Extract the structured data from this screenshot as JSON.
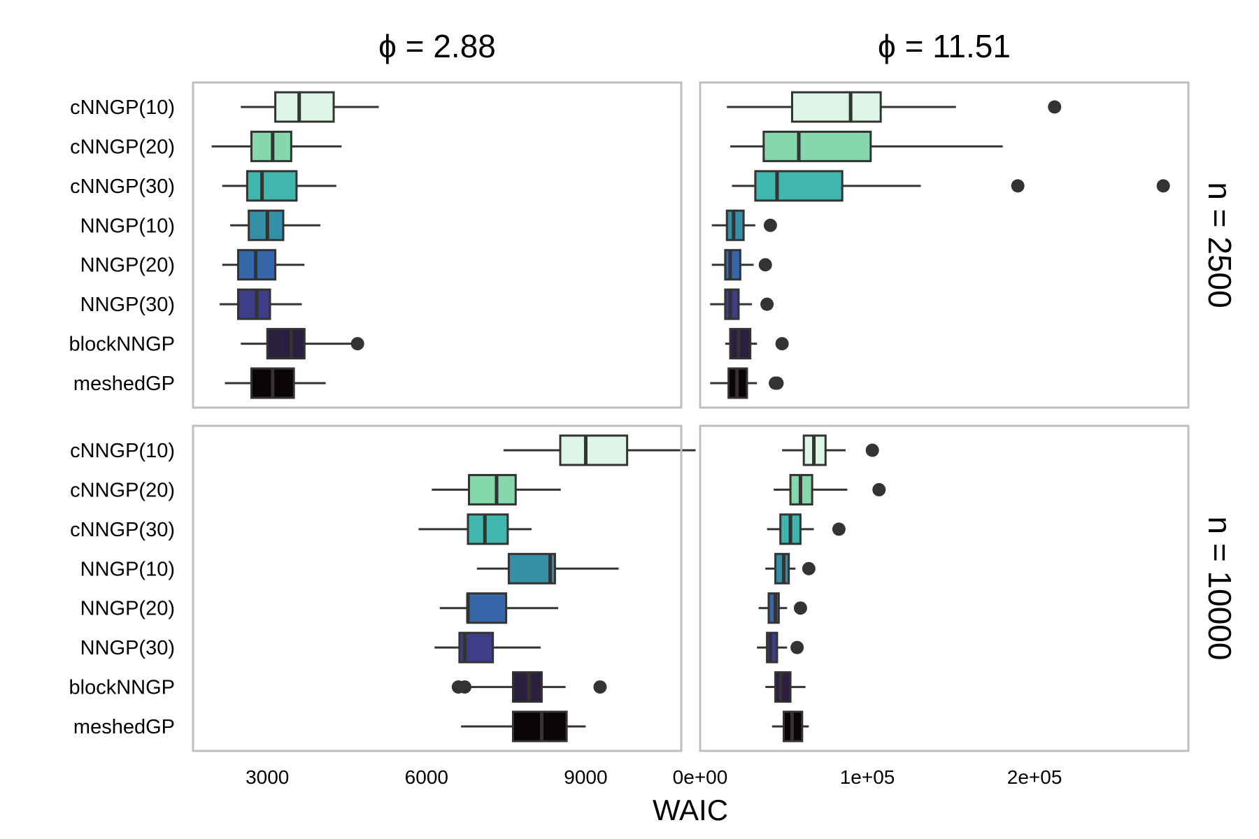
{
  "chart_data": {
    "type": "boxplot",
    "xlabel": "WAIC",
    "categories": [
      "cNNGP(10)",
      "cNNGP(20)",
      "cNNGP(30)",
      "NNGP(10)",
      "NNGP(20)",
      "NNGP(30)",
      "blockNNGP",
      "meshedGP"
    ],
    "colors": [
      "#ddf5e6",
      "#86d7ac",
      "#40b7ad",
      "#348fa7",
      "#3766a9",
      "#3e3d87",
      "#2c1e3e",
      "#0b0405"
    ],
    "columns": [
      {
        "label": "ϕ = 2.88",
        "xlim": [
          1600,
          10800
        ],
        "ticks": [
          {
            "value": 3000,
            "label": "3000"
          },
          {
            "value": 6000,
            "label": "6000"
          },
          {
            "value": 9000,
            "label": "9000"
          }
        ]
      },
      {
        "label": "ϕ = 11.51",
        "xlim": [
          0,
          292000
        ],
        "ticks": [
          {
            "value": 0,
            "label": "0e+00"
          },
          {
            "value": 100000,
            "label": "1e+05"
          },
          {
            "value": 200000,
            "label": "2e+05"
          }
        ]
      }
    ],
    "rows": [
      {
        "label": "n = 2500"
      },
      {
        "label": "n = 10000"
      }
    ],
    "panels": [
      {
        "row": 0,
        "col": 0,
        "boxes": [
          {
            "min": 2500,
            "q1": 3150,
            "median": 3600,
            "q3": 4250,
            "max": 5100,
            "outliers": []
          },
          {
            "min": 1950,
            "q1": 2700,
            "median": 3100,
            "q3": 3450,
            "max": 4400,
            "outliers": []
          },
          {
            "min": 2150,
            "q1": 2620,
            "median": 2900,
            "q3": 3550,
            "max": 4300,
            "outliers": []
          },
          {
            "min": 2300,
            "q1": 2650,
            "median": 3000,
            "q3": 3300,
            "max": 4000,
            "outliers": []
          },
          {
            "min": 2150,
            "q1": 2450,
            "median": 2780,
            "q3": 3150,
            "max": 3700,
            "outliers": []
          },
          {
            "min": 2100,
            "q1": 2450,
            "median": 2800,
            "q3": 3050,
            "max": 3650,
            "outliers": []
          },
          {
            "min": 2500,
            "q1": 3000,
            "median": 3450,
            "q3": 3700,
            "max": 4600,
            "outliers": [
              4700
            ]
          },
          {
            "min": 2200,
            "q1": 2700,
            "median": 3100,
            "q3": 3500,
            "max": 4100,
            "outliers": []
          }
        ]
      },
      {
        "row": 0,
        "col": 1,
        "boxes": [
          {
            "min": 16000,
            "q1": 55000,
            "median": 90000,
            "q3": 108000,
            "max": 153000,
            "outliers": [
              212000
            ]
          },
          {
            "min": 18000,
            "q1": 38000,
            "median": 59000,
            "q3": 102000,
            "max": 181000,
            "outliers": []
          },
          {
            "min": 19000,
            "q1": 33000,
            "median": 46000,
            "q3": 85000,
            "max": 132000,
            "outliers": [
              190000,
              277000
            ]
          },
          {
            "min": 7000,
            "q1": 16000,
            "median": 20000,
            "q3": 26000,
            "max": 33000,
            "outliers": [
              42000
            ]
          },
          {
            "min": 7000,
            "q1": 15000,
            "median": 18000,
            "q3": 24000,
            "max": 32000,
            "outliers": [
              39000
            ]
          },
          {
            "min": 6000,
            "q1": 15000,
            "median": 18000,
            "q3": 23000,
            "max": 31000,
            "outliers": [
              40000
            ]
          },
          {
            "min": 15000,
            "q1": 18000,
            "median": 23000,
            "q3": 30000,
            "max": 34000,
            "outliers": [
              49000
            ]
          },
          {
            "min": 6000,
            "q1": 17000,
            "median": 22000,
            "q3": 28000,
            "max": 34000,
            "outliers": [
              45000,
              46000
            ]
          }
        ]
      },
      {
        "row": 1,
        "col": 0,
        "boxes": [
          {
            "min": 7450,
            "q1": 8520,
            "median": 9000,
            "q3": 9780,
            "max": 11070,
            "outliers": []
          },
          {
            "min": 6100,
            "q1": 6800,
            "median": 7320,
            "q3": 7680,
            "max": 8530,
            "outliers": []
          },
          {
            "min": 5850,
            "q1": 6780,
            "median": 7100,
            "q3": 7530,
            "max": 7980,
            "outliers": []
          },
          {
            "min": 6950,
            "q1": 7550,
            "median": 8330,
            "q3": 8420,
            "max": 9620,
            "outliers": []
          },
          {
            "min": 6250,
            "q1": 6770,
            "median": 6780,
            "q3": 7500,
            "max": 8480,
            "outliers": []
          },
          {
            "min": 6150,
            "q1": 6620,
            "median": 6720,
            "q3": 7250,
            "max": 8150,
            "outliers": []
          },
          {
            "min": 6700,
            "q1": 7630,
            "median": 7930,
            "q3": 8170,
            "max": 8620,
            "outliers": [
              6600,
              6720,
              9270
            ]
          },
          {
            "min": 6650,
            "q1": 7630,
            "median": 8170,
            "q3": 8640,
            "max": 9000,
            "outliers": []
          }
        ]
      },
      {
        "row": 1,
        "col": 1,
        "boxes": [
          {
            "min": 49000,
            "q1": 62000,
            "median": 68000,
            "q3": 75000,
            "max": 87000,
            "outliers": [
              103000
            ]
          },
          {
            "min": 44000,
            "q1": 54000,
            "median": 60000,
            "q3": 67000,
            "max": 88000,
            "outliers": [
              107000
            ]
          },
          {
            "min": 40000,
            "q1": 48000,
            "median": 54000,
            "q3": 60000,
            "max": 68000,
            "outliers": [
              83000
            ]
          },
          {
            "min": 39000,
            "q1": 45000,
            "median": 50000,
            "q3": 53000,
            "max": 57000,
            "outliers": [
              65000
            ]
          },
          {
            "min": 35000,
            "q1": 41000,
            "median": 45000,
            "q3": 47000,
            "max": 52000,
            "outliers": [
              60000
            ]
          },
          {
            "min": 34000,
            "q1": 40000,
            "median": 42000,
            "q3": 46000,
            "max": 52000,
            "outliers": [
              58000
            ]
          },
          {
            "min": 39000,
            "q1": 45000,
            "median": 48000,
            "q3": 54000,
            "max": 63000,
            "outliers": []
          },
          {
            "min": 43000,
            "q1": 50000,
            "median": 55000,
            "q3": 61000,
            "max": 65000,
            "outliers": []
          }
        ]
      }
    ]
  }
}
